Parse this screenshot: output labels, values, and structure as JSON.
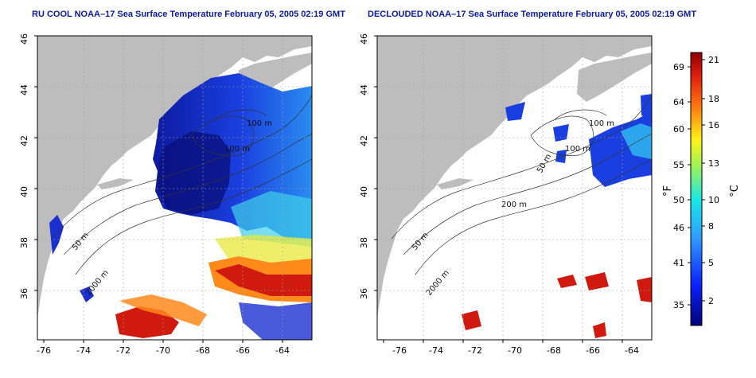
{
  "panels": [
    {
      "title": "RU COOL NOAA–17 Sea Surface Temperature February 05, 2005 02:19 GMT",
      "contour_labels": [
        "100 m",
        "100 m",
        "50 m",
        "2000 m"
      ]
    },
    {
      "title": "DECLOUDED NOAA–17 Sea Surface Temperature February 05, 2005 02:19 GMT",
      "contour_labels": [
        "100 m",
        "100 m",
        "50 m",
        "200 m",
        "50 m",
        "2000 m"
      ]
    }
  ],
  "axes": {
    "x_ticks": [
      "-76",
      "-74",
      "-72",
      "-70",
      "-68",
      "-66",
      "-64"
    ],
    "y_ticks": [
      "46",
      "44",
      "42",
      "40",
      "38",
      "36"
    ]
  },
  "colorbar": {
    "f_label": "°F",
    "c_label": "°C",
    "f_ticks": [
      "69",
      "64",
      "60",
      "55",
      "50",
      "46",
      "41",
      "35"
    ],
    "c_ticks": [
      "21",
      "18",
      "16",
      "13",
      "10",
      "8",
      "5",
      "2"
    ]
  },
  "colors": {
    "land": "#bdbdbd",
    "title": "#0a1aa8",
    "cold": "#08088a",
    "warm": "#c81e1e"
  }
}
